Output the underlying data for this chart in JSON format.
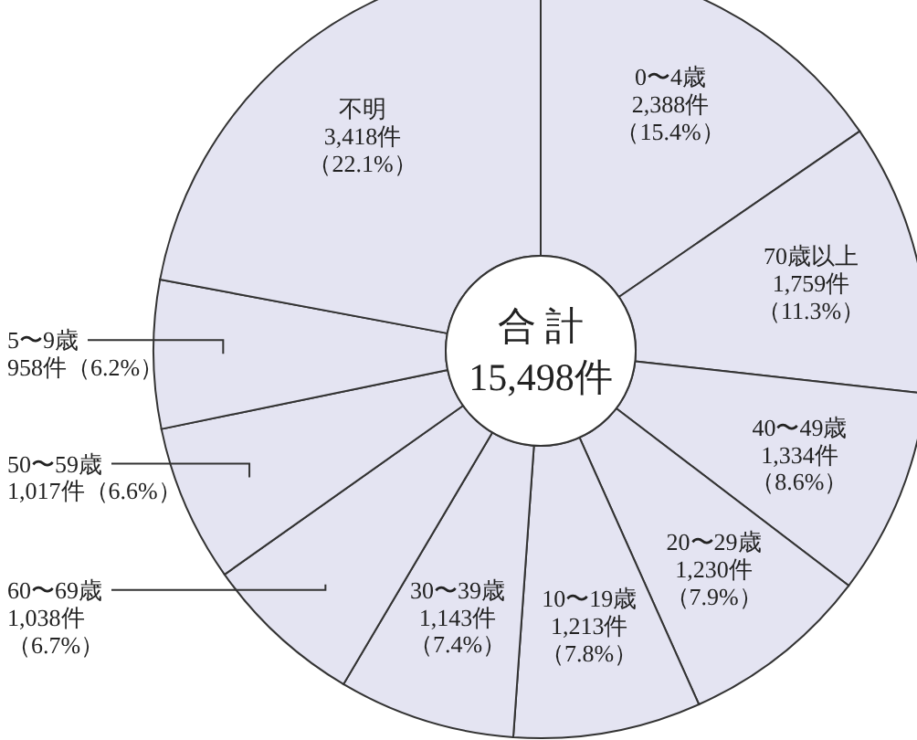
{
  "chart_data": {
    "type": "donut",
    "categories": [
      "0〜4歳",
      "70歳以上",
      "40〜49歳",
      "20〜29歳",
      "10〜19歳",
      "30〜39歳",
      "60〜69歳",
      "50〜59歳",
      "5〜9歳",
      "不明"
    ],
    "values": [
      2388,
      1759,
      1334,
      1230,
      1213,
      1143,
      1038,
      1017,
      958,
      3418
    ],
    "colors": [
      "#e4e4f2",
      "#e4e4f2",
      "#e4e4f2",
      "#e4e4f2",
      "#e4e4f2",
      "#e4e4f2",
      "#e4e4f2",
      "#e4e4f2",
      "#e4e4f2",
      "#e4e4f2"
    ],
    "value_labels": [
      "2,388件（15.4%）",
      "1,759件（11.3%）",
      "1,334件（8.6%）",
      "1,230件（7.9%）",
      "1,213件（7.8%）",
      "1,143件（7.4%）",
      "1,038件（6.7%）",
      "1,017件（6.6%）",
      "958件（6.2%）",
      "3,418件（22.1%）"
    ],
    "annotations": [
      "合 計",
      "15,498件"
    ]
  }
}
